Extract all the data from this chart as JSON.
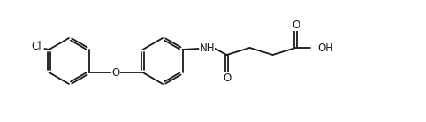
{
  "background_color": "#ffffff",
  "line_color": "#1a1a1a",
  "line_width": 1.3,
  "figsize": [
    4.82,
    1.38
  ],
  "dpi": 100,
  "xlim": [
    0,
    482
  ],
  "ylim": [
    0,
    138
  ],
  "ring_r": 28,
  "font_size": 8.5
}
